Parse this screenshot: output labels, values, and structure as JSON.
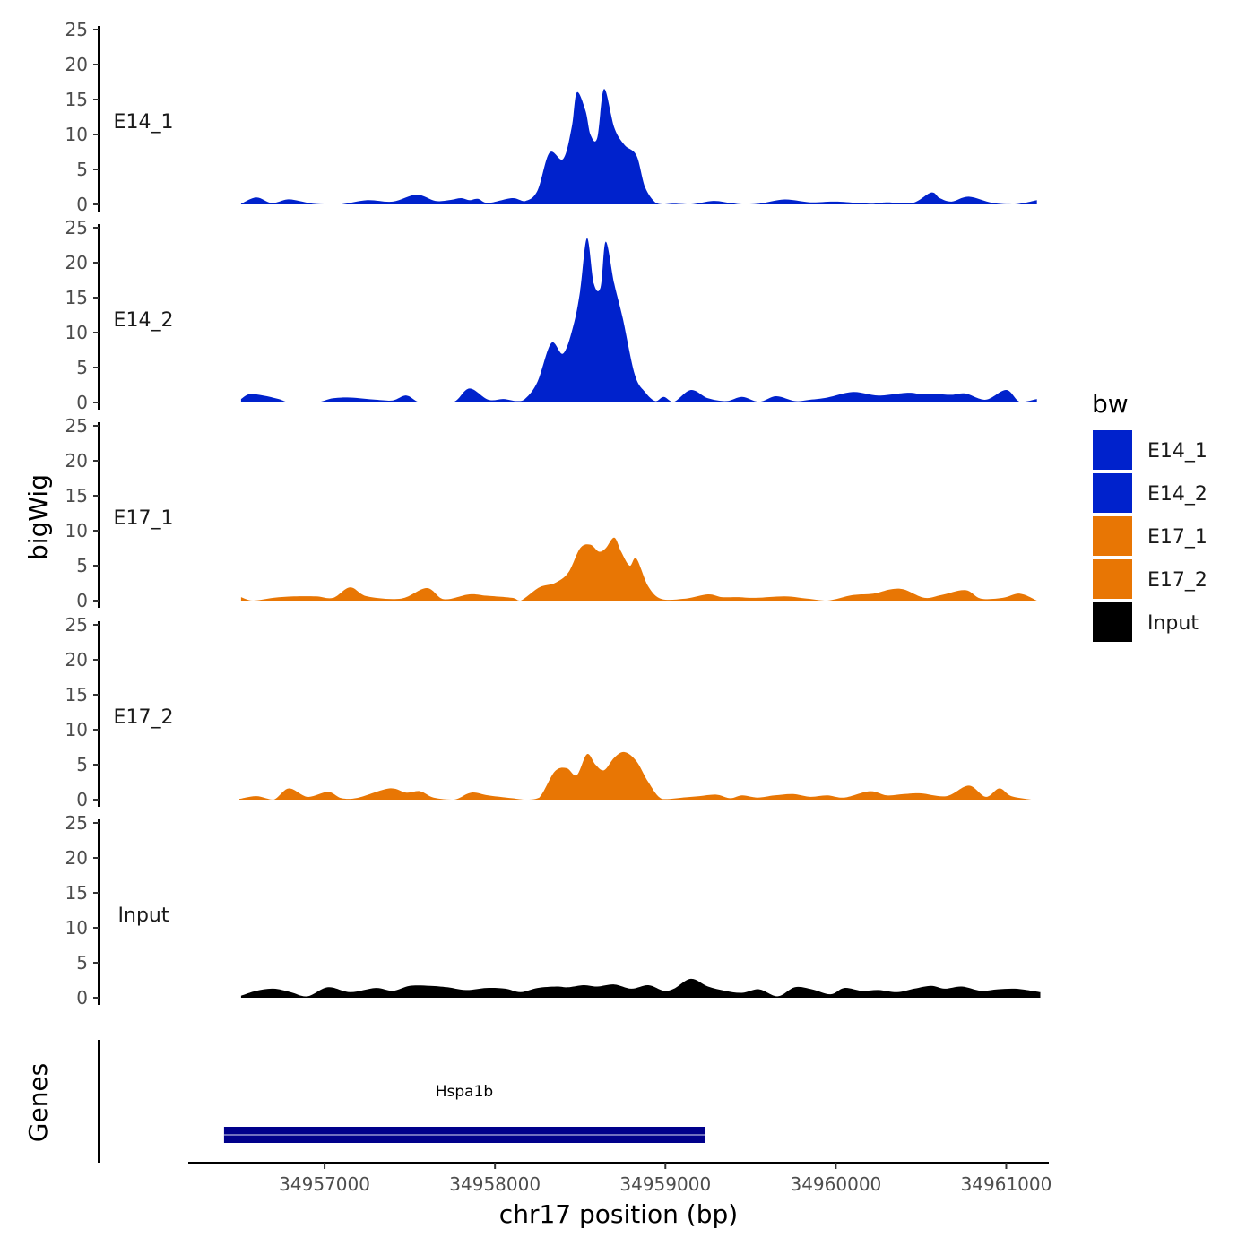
{
  "chart_data": {
    "type": "area",
    "ylabel": "bigWig",
    "xlabel": "chr17 position (bp)",
    "ylim": [
      0,
      25
    ],
    "y_ticks": [
      0,
      5,
      10,
      15,
      20,
      25
    ],
    "xlim": [
      34956200,
      34961250
    ],
    "x_ticks": [
      34957000,
      34958000,
      34959000,
      34960000,
      34961000
    ],
    "x_tick_labels": [
      "34957000",
      "34958000",
      "34959000",
      "34960000",
      "34961000"
    ],
    "legend": {
      "title": "bw",
      "position": "right",
      "entries": [
        {
          "label": "E14_1",
          "color": "#0022cc"
        },
        {
          "label": "E14_2",
          "color": "#0022cc"
        },
        {
          "label": "E17_1",
          "color": "#e87604"
        },
        {
          "label": "E17_2",
          "color": "#e87604"
        },
        {
          "label": "Input",
          "color": "#000000"
        }
      ]
    },
    "series": [
      {
        "name": "E14_1",
        "color": "#0022cc",
        "x": [
          34956510,
          34956600,
          34956690,
          34956780,
          34956850,
          34956930,
          34957020,
          34957100,
          34957250,
          34957400,
          34957540,
          34957650,
          34957730,
          34957800,
          34957850,
          34957900,
          34957960,
          34958100,
          34958180,
          34958250,
          34958320,
          34958400,
          34958450,
          34958480,
          34958530,
          34958560,
          34958600,
          34958640,
          34958700,
          34958760,
          34958830,
          34958880,
          34958940,
          34958990,
          34959050,
          34959150,
          34959280,
          34959380,
          34959450,
          34959550,
          34959700,
          34959850,
          34960000,
          34960200,
          34960300,
          34960450,
          34960560,
          34960610,
          34960680,
          34960780,
          34960920,
          34961050,
          34961180
        ],
        "values": [
          0.1,
          1.0,
          0.2,
          0.7,
          0.5,
          0.1,
          0.0,
          0.0,
          0.6,
          0.4,
          1.4,
          0.5,
          0.6,
          0.9,
          0.6,
          0.8,
          0.2,
          0.9,
          0.5,
          2.0,
          7.4,
          6.5,
          11.0,
          16.0,
          13.5,
          10.0,
          9.5,
          16.5,
          11.0,
          8.5,
          7.0,
          2.5,
          0.3,
          0.0,
          0.1,
          0.0,
          0.5,
          0.2,
          0.0,
          0.1,
          0.7,
          0.3,
          0.4,
          0.1,
          0.3,
          0.2,
          1.7,
          0.9,
          0.4,
          1.1,
          0.2,
          0.0,
          0.6
        ]
      },
      {
        "name": "E14_2",
        "color": "#0022cc",
        "x": [
          34956510,
          34956560,
          34956640,
          34956730,
          34956800,
          34956950,
          34957050,
          34957150,
          34957300,
          34957400,
          34957480,
          34957550,
          34957640,
          34957760,
          34957850,
          34957960,
          34958050,
          34958130,
          34958180,
          34958250,
          34958330,
          34958400,
          34958460,
          34958500,
          34958540,
          34958580,
          34958620,
          34958650,
          34958700,
          34958750,
          34958820,
          34958880,
          34958940,
          34958990,
          34959050,
          34959150,
          34959250,
          34959360,
          34959450,
          34959550,
          34959650,
          34959760,
          34959850,
          34959950,
          34960100,
          34960250,
          34960420,
          34960500,
          34960600,
          34960680,
          34960760,
          34960880,
          34961000,
          34961080,
          34961180
        ],
        "values": [
          0.5,
          1.2,
          1.0,
          0.5,
          0.0,
          0.0,
          0.6,
          0.7,
          0.4,
          0.3,
          1.0,
          0.1,
          0.0,
          0.1,
          2.0,
          0.4,
          0.5,
          0.2,
          0.6,
          3.0,
          8.5,
          7.0,
          11.0,
          16.0,
          23.5,
          17.0,
          16.5,
          23.0,
          17.0,
          12.0,
          4.0,
          1.5,
          0.2,
          0.8,
          0.1,
          1.8,
          0.6,
          0.2,
          0.8,
          0.1,
          0.9,
          0.2,
          0.4,
          0.7,
          1.5,
          1.0,
          1.4,
          1.2,
          1.2,
          1.1,
          1.3,
          0.4,
          1.8,
          0.1,
          0.5
        ]
      },
      {
        "name": "E17_1",
        "color": "#e87604",
        "x": [
          34956510,
          34956580,
          34956700,
          34956820,
          34956950,
          34957050,
          34957150,
          34957250,
          34957450,
          34957600,
          34957700,
          34957850,
          34957950,
          34958100,
          34958150,
          34958260,
          34958350,
          34958430,
          34958500,
          34958560,
          34958610,
          34958650,
          34958700,
          34958740,
          34958790,
          34958830,
          34958900,
          34958980,
          34959120,
          34959250,
          34959330,
          34959420,
          34959530,
          34959700,
          34959830,
          34959950,
          34960100,
          34960220,
          34960320,
          34960400,
          34960520,
          34960620,
          34960760,
          34960850,
          34960980,
          34961080,
          34961180
        ],
        "values": [
          0.5,
          0.0,
          0.4,
          0.6,
          0.6,
          0.4,
          1.9,
          0.6,
          0.3,
          1.8,
          0.2,
          0.9,
          0.7,
          0.4,
          0.0,
          1.9,
          2.5,
          4.0,
          7.5,
          8.0,
          7.0,
          7.5,
          9.0,
          7.0,
          5.0,
          6.0,
          2.0,
          0.2,
          0.3,
          0.9,
          0.5,
          0.5,
          0.4,
          0.6,
          0.3,
          0.0,
          0.8,
          1.0,
          1.6,
          1.6,
          0.4,
          0.8,
          1.5,
          0.3,
          0.4,
          1.0,
          0.0
        ]
      },
      {
        "name": "E17_2",
        "color": "#e87604",
        "x": [
          34956500,
          34956600,
          34956700,
          34956790,
          34956900,
          34957020,
          34957100,
          34957200,
          34957380,
          34957480,
          34957560,
          34957640,
          34957760,
          34957860,
          34957960,
          34958100,
          34958180,
          34958260,
          34958350,
          34958420,
          34958480,
          34958540,
          34958590,
          34958640,
          34958700,
          34958760,
          34958830,
          34958900,
          34958980,
          34959100,
          34959200,
          34959300,
          34959380,
          34959450,
          34959540,
          34959640,
          34959750,
          34959850,
          34959950,
          34960050,
          34960200,
          34960300,
          34960400,
          34960500,
          34960650,
          34960780,
          34960880,
          34960960,
          34961030,
          34961150
        ],
        "values": [
          0.1,
          0.5,
          0.0,
          1.6,
          0.4,
          1.1,
          0.2,
          0.3,
          1.6,
          1.0,
          1.2,
          0.3,
          0.0,
          1.0,
          0.6,
          0.2,
          0.0,
          0.3,
          4.0,
          4.5,
          3.5,
          6.5,
          5.0,
          4.2,
          6.0,
          6.8,
          5.5,
          2.5,
          0.1,
          0.3,
          0.5,
          0.7,
          0.2,
          0.6,
          0.3,
          0.6,
          0.8,
          0.4,
          0.6,
          0.3,
          1.2,
          0.6,
          0.8,
          0.9,
          0.5,
          2.0,
          0.4,
          1.6,
          0.5,
          0.0
        ]
      },
      {
        "name": "Input",
        "color": "#000000",
        "x": [
          34956510,
          34956600,
          34956700,
          34956800,
          34956900,
          34957020,
          34957150,
          34957300,
          34957400,
          34957500,
          34957620,
          34957720,
          34957830,
          34957950,
          34958060,
          34958150,
          34958250,
          34958360,
          34958430,
          34958520,
          34958600,
          34958700,
          34958800,
          34958900,
          34958990,
          34959050,
          34959150,
          34959250,
          34959350,
          34959450,
          34959550,
          34959660,
          34959760,
          34959860,
          34959970,
          34960050,
          34960150,
          34960250,
          34960360,
          34960460,
          34960560,
          34960640,
          34960740,
          34960850,
          34960950,
          34961050,
          34961150,
          34961200
        ],
        "values": [
          0.3,
          1.0,
          1.3,
          0.8,
          0.2,
          1.5,
          0.8,
          1.4,
          1.0,
          1.7,
          1.7,
          1.5,
          1.1,
          1.4,
          1.3,
          0.8,
          1.4,
          1.6,
          1.5,
          1.8,
          1.6,
          1.9,
          1.3,
          1.8,
          1.0,
          1.3,
          2.7,
          1.6,
          1.0,
          0.7,
          1.2,
          0.2,
          1.5,
          1.2,
          0.5,
          1.4,
          1.0,
          1.1,
          0.8,
          1.3,
          1.7,
          1.3,
          1.6,
          1.0,
          1.2,
          1.3,
          1.0,
          0.8
        ]
      }
    ],
    "gene_track": {
      "ylabel": "Genes",
      "genes": [
        {
          "name": "Hspa1b",
          "start": 34956410,
          "end": 34959230,
          "color": "#00008b"
        }
      ]
    }
  }
}
